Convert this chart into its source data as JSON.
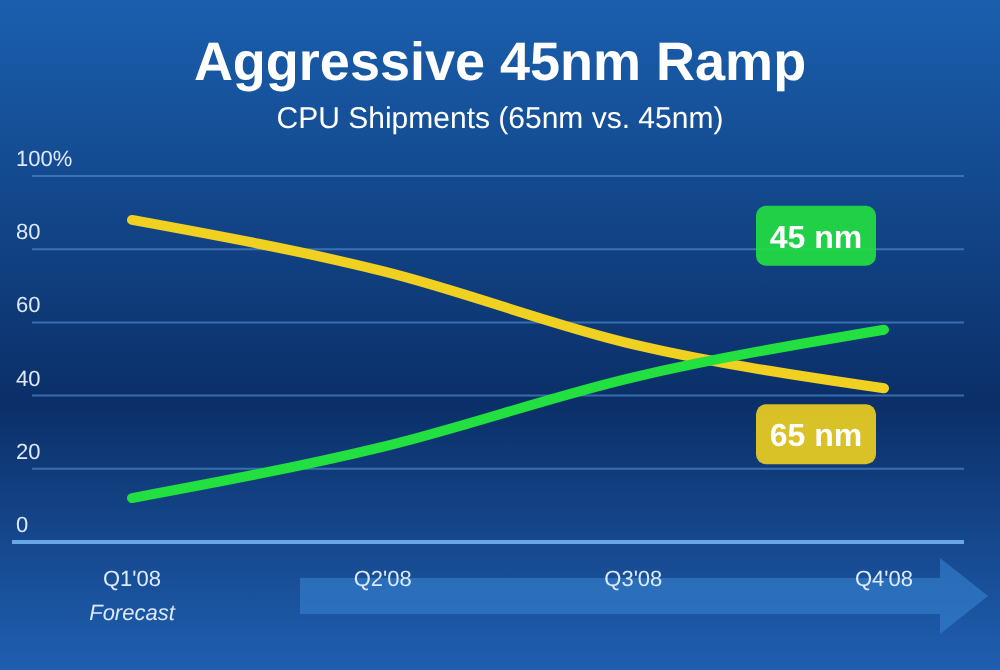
{
  "chart_data": {
    "type": "line",
    "title": "Aggressive 45nm Ramp",
    "subtitle": "CPU Shipments (65nm vs. 45nm)",
    "categories": [
      "Q1'08",
      "Q2'08",
      "Q3'08",
      "Q4'08"
    ],
    "series": [
      {
        "name": "65 nm",
        "color": "#f0d020",
        "values": [
          88,
          74,
          54,
          42
        ]
      },
      {
        "name": "45 nm",
        "color": "#22e040",
        "values": [
          12,
          26,
          45,
          58
        ]
      }
    ],
    "ylim": [
      0,
      100
    ],
    "yticks": [
      0,
      20,
      40,
      60,
      80,
      {
        "value": 100,
        "label": "100%"
      }
    ],
    "grid": "y",
    "marker": "none",
    "line_style": "solid",
    "annotations": [
      "Forecast"
    ]
  }
}
